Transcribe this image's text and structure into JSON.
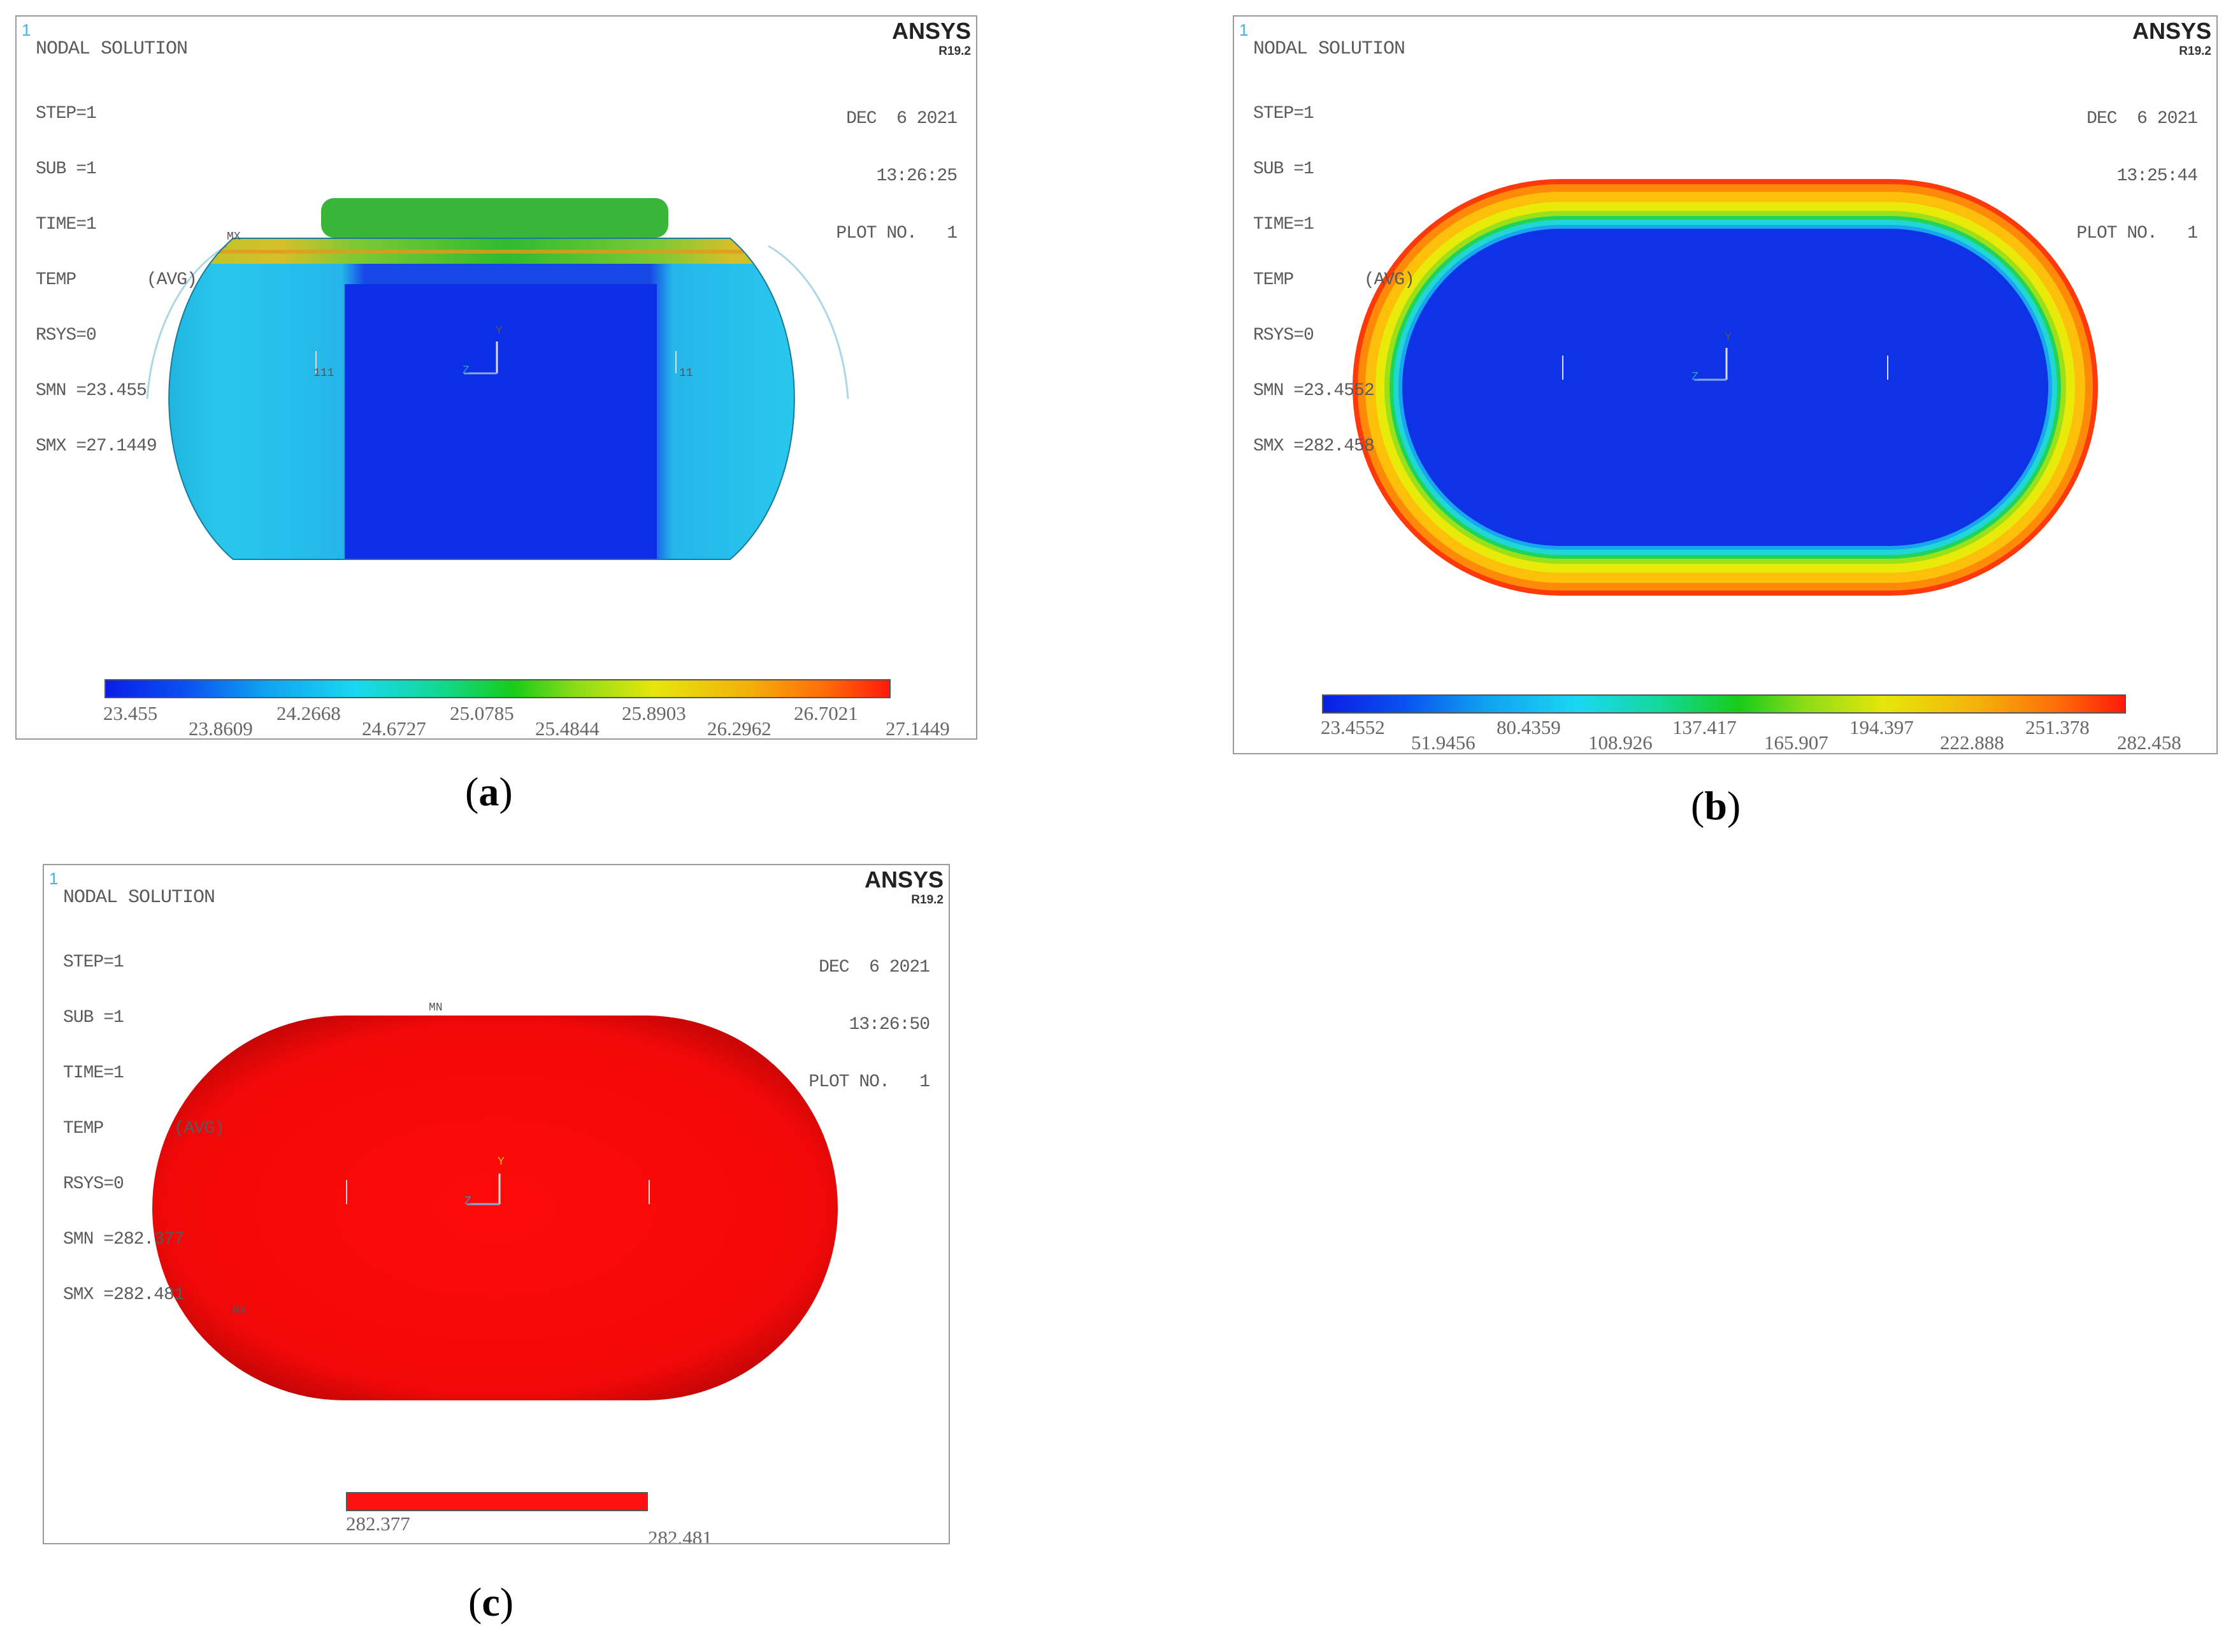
{
  "panels": [
    {
      "id": "a",
      "corner_label": "1",
      "title": "NODAL SOLUTION",
      "info_lines": [
        "STEP=1",
        "SUB =1",
        "TIME=1",
        "TEMP       (AVG)",
        "RSYS=0",
        "SMN =23.455",
        "SMX =27.1449"
      ],
      "brand": "ANSYS",
      "version": "R19.2",
      "date_lines": [
        "DEC  6 2021",
        "13:26:25",
        "PLOT NO.   1"
      ],
      "legend_top": [
        "23.455",
        "24.2668",
        "25.0785",
        "25.8903",
        "26.7021"
      ],
      "legend_bottom": [
        "23.8609",
        "24.6727",
        "25.4844",
        "26.2962",
        "27.1449"
      ],
      "markers": {
        "mx": "MX",
        "axis_y": "Y",
        "axis_z": "Z",
        "node_left": "111",
        "node_right": "11"
      },
      "caption": "a"
    },
    {
      "id": "b",
      "corner_label": "1",
      "title": "NODAL SOLUTION",
      "info_lines": [
        "STEP=1",
        "SUB =1",
        "TIME=1",
        "TEMP       (AVG)",
        "RSYS=0",
        "SMN =23.4552",
        "SMX =282.458"
      ],
      "brand": "ANSYS",
      "version": "R19.2",
      "date_lines": [
        "DEC  6 2021",
        "13:25:44",
        "PLOT NO.   1"
      ],
      "legend_top": [
        "23.4552",
        "80.4359",
        "137.417",
        "194.397",
        "251.378"
      ],
      "legend_bottom": [
        "51.9456",
        "108.926",
        "165.907",
        "222.888",
        "282.458"
      ],
      "markers": {
        "axis_y": "Y",
        "axis_z": "Z"
      },
      "caption": "b"
    },
    {
      "id": "c",
      "corner_label": "1",
      "title": "NODAL SOLUTION",
      "info_lines": [
        "STEP=1",
        "SUB =1",
        "TIME=1",
        "TEMP       (AVG)",
        "RSYS=0",
        "SMN =282.377",
        "SMX =282.481"
      ],
      "brand": "ANSYS",
      "version": "R19.2",
      "date_lines": [
        "DEC  6 2021",
        "13:26:50",
        "PLOT NO.   1"
      ],
      "legend_top": [
        "282.377"
      ],
      "legend_bottom": [
        "282.481"
      ],
      "markers": {
        "mn": "MN",
        "mx": "MX",
        "axis_y": "Y",
        "axis_z": "Z"
      },
      "caption": "c"
    }
  ],
  "colors": {
    "blue": "#0a2fe0",
    "cyan": "#2bc6ee",
    "green": "#1fcc1f",
    "yellow": "#f2e10a",
    "orange": "#f4a20a",
    "red": "#ff0a0a"
  }
}
